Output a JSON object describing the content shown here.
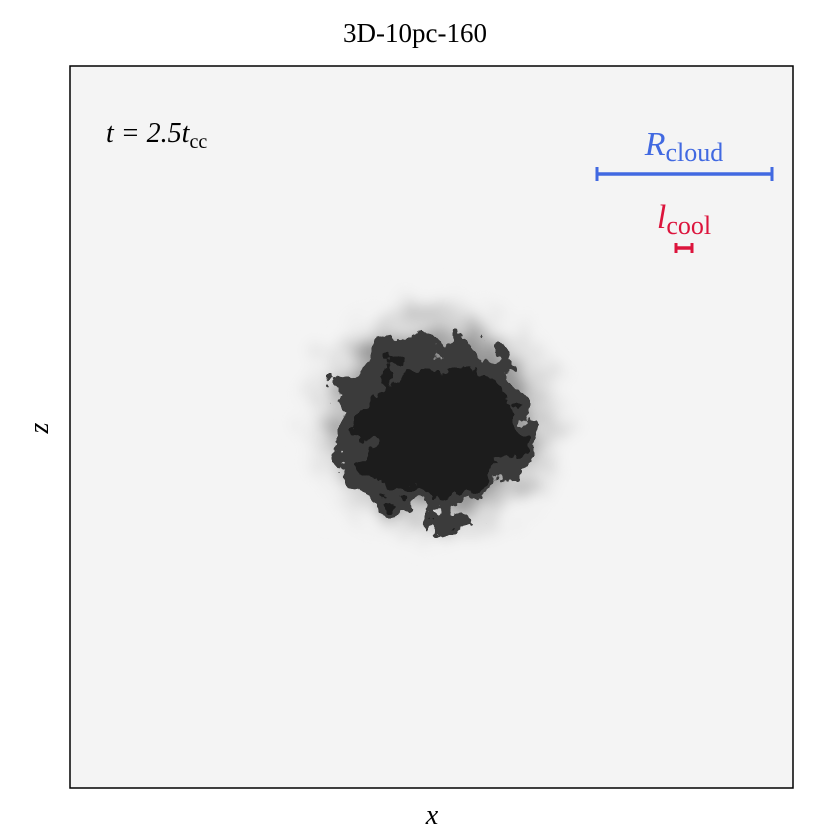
{
  "title": "3D-10pc-160",
  "x_label": "x",
  "y_label": "z",
  "time_label": {
    "base": "t = 2.5t",
    "subscript": "cc"
  },
  "scale_bars": [
    {
      "base": "R",
      "subscript": "cloud",
      "color": "#4169e1"
    },
    {
      "base": "l",
      "subscript": "cool",
      "color": "#dc143c"
    }
  ]
}
